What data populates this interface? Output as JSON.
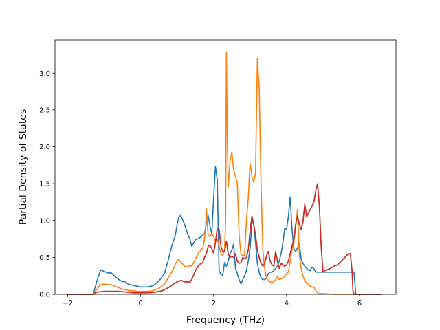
{
  "chart_data": {
    "type": "line",
    "title": "",
    "xlabel": "Frequency (THz)",
    "ylabel": "Partial Density of States",
    "xlim": [
      -2.35,
      7.0
    ],
    "ylim": [
      0.0,
      3.45
    ],
    "xticks": [
      -2,
      0,
      2,
      4,
      6
    ],
    "xtick_labels": [
      "−2",
      "0",
      "2",
      "4",
      "6"
    ],
    "yticks": [
      0.0,
      0.5,
      1.0,
      1.5,
      2.0,
      2.5,
      3.0
    ],
    "ytick_labels": [
      "0.0",
      "0.5",
      "1.0",
      "1.5",
      "2.0",
      "2.5",
      "3.0"
    ],
    "grid": false,
    "legend": "none",
    "series": [
      {
        "color": "#1f77b4",
        "x": [
          -2.0,
          -1.3,
          -1.2,
          -1.1,
          -1.0,
          -0.9,
          -0.8,
          -0.7,
          -0.6,
          -0.5,
          -0.45,
          -0.35,
          -0.2,
          -0.1,
          0.0,
          0.2,
          0.35,
          0.5,
          0.65,
          0.75,
          0.85,
          0.95,
          1.0,
          1.05,
          1.1,
          1.2,
          1.3,
          1.35,
          1.4,
          1.5,
          1.6,
          1.7,
          1.75,
          1.78,
          1.8,
          1.85,
          1.9,
          1.95,
          2.0,
          2.05,
          2.1,
          2.15,
          2.2,
          2.25,
          2.3,
          2.35,
          2.4,
          2.45,
          2.5,
          2.55,
          2.6,
          2.65,
          2.7,
          2.75,
          2.8,
          2.85,
          2.9,
          2.95,
          3.0,
          3.05,
          3.1,
          3.15,
          3.2,
          3.25,
          3.3,
          3.35,
          3.4,
          3.45,
          3.5,
          3.55,
          3.6,
          3.65,
          3.7,
          3.75,
          3.8,
          3.85,
          3.9,
          3.95,
          4.0,
          4.05,
          4.1,
          4.15,
          4.2,
          4.25,
          4.3,
          4.35,
          4.4,
          4.45,
          4.5,
          4.55,
          4.6,
          4.65,
          4.7,
          4.75,
          4.8,
          4.85,
          4.9,
          4.95,
          5.0,
          5.3,
          5.6,
          5.75,
          5.82,
          5.85,
          5.9,
          6.0,
          6.6
        ],
        "y": [
          0.0,
          0.0,
          0.18,
          0.33,
          0.31,
          0.29,
          0.29,
          0.24,
          0.2,
          0.17,
          0.18,
          0.14,
          0.12,
          0.11,
          0.1,
          0.1,
          0.12,
          0.18,
          0.28,
          0.45,
          0.65,
          0.8,
          0.95,
          1.05,
          1.07,
          0.95,
          0.8,
          0.75,
          0.65,
          0.74,
          0.76,
          0.8,
          0.82,
          0.9,
          0.97,
          1.07,
          0.92,
          0.82,
          1.3,
          1.73,
          1.55,
          0.32,
          0.27,
          0.26,
          0.43,
          0.38,
          0.45,
          0.55,
          0.6,
          0.68,
          0.35,
          0.28,
          0.2,
          0.14,
          0.2,
          0.25,
          0.32,
          0.45,
          0.62,
          0.98,
          0.95,
          0.7,
          0.42,
          0.3,
          0.22,
          0.2,
          0.2,
          0.22,
          0.28,
          0.3,
          0.3,
          0.32,
          0.35,
          0.38,
          0.45,
          0.55,
          0.7,
          0.89,
          0.88,
          1.05,
          1.32,
          0.88,
          0.62,
          0.58,
          0.63,
          0.69,
          0.48,
          0.42,
          0.38,
          0.35,
          0.33,
          0.32,
          0.37,
          0.35,
          0.3,
          0.3,
          0.3,
          0.3,
          0.3,
          0.3,
          0.3,
          0.3,
          0.3,
          0.3,
          0.0,
          0.0,
          0.0
        ]
      },
      {
        "color": "#ff7f0e",
        "x": [
          -2.0,
          -1.3,
          -1.2,
          -1.1,
          -1.0,
          -0.9,
          -0.8,
          -0.7,
          -0.6,
          -0.5,
          -0.4,
          -0.3,
          -0.2,
          -0.1,
          0.0,
          0.2,
          0.35,
          0.5,
          0.65,
          0.75,
          0.85,
          0.95,
          1.0,
          1.05,
          1.1,
          1.2,
          1.3,
          1.35,
          1.4,
          1.5,
          1.6,
          1.7,
          1.75,
          1.78,
          1.8,
          1.85,
          1.9,
          1.95,
          2.0,
          2.05,
          2.1,
          2.15,
          2.2,
          2.25,
          2.3,
          2.33,
          2.35,
          2.38,
          2.4,
          2.45,
          2.5,
          2.55,
          2.6,
          2.65,
          2.7,
          2.75,
          2.8,
          2.85,
          2.9,
          2.95,
          3.0,
          3.05,
          3.1,
          3.15,
          3.2,
          3.25,
          3.3,
          3.35,
          3.4,
          3.45,
          3.5,
          3.55,
          3.6,
          3.65,
          3.7,
          3.75,
          3.8,
          3.85,
          3.9,
          3.95,
          4.0,
          4.05,
          4.1,
          4.15,
          4.2,
          4.25,
          4.3,
          4.35,
          4.4,
          4.45,
          4.5,
          4.55,
          4.6,
          4.65,
          4.7,
          4.75,
          4.8,
          4.85,
          4.9,
          4.95,
          5.0,
          5.3,
          5.6,
          5.75,
          5.82,
          5.85,
          5.9,
          6.0,
          6.6
        ],
        "y": [
          0.0,
          0.0,
          0.07,
          0.13,
          0.14,
          0.13,
          0.13,
          0.11,
          0.09,
          0.07,
          0.06,
          0.05,
          0.05,
          0.04,
          0.04,
          0.04,
          0.05,
          0.08,
          0.14,
          0.22,
          0.3,
          0.4,
          0.46,
          0.47,
          0.44,
          0.38,
          0.37,
          0.4,
          0.38,
          0.48,
          0.57,
          0.62,
          0.75,
          0.9,
          1.16,
          0.8,
          0.78,
          0.82,
          0.78,
          0.72,
          0.75,
          0.65,
          0.55,
          0.52,
          0.6,
          1.0,
          3.28,
          2.0,
          1.45,
          1.8,
          1.93,
          1.68,
          1.6,
          1.5,
          0.8,
          0.55,
          0.52,
          0.53,
          1.0,
          1.3,
          1.78,
          1.6,
          1.52,
          1.65,
          3.2,
          2.8,
          1.5,
          0.6,
          0.35,
          0.22,
          0.18,
          0.17,
          0.16,
          0.17,
          0.2,
          0.24,
          0.2,
          0.21,
          0.22,
          0.25,
          0.28,
          0.3,
          0.45,
          0.6,
          0.7,
          0.9,
          1.15,
          0.55,
          0.35,
          0.25,
          0.18,
          0.15,
          0.13,
          0.11,
          0.1,
          0.1,
          0.05,
          0.02,
          0.01,
          0.01,
          0.01,
          0.0,
          0.0,
          0.0,
          0.0,
          0.0,
          0.0,
          0.0,
          0.0
        ]
      },
      {
        "color": "#2ca02c",
        "x": [
          -2.0,
          -1.3,
          -1.2,
          -1.0,
          -0.8,
          -0.6,
          -0.4,
          -0.2,
          0.0,
          0.2,
          0.4,
          0.6,
          0.8,
          0.9,
          1.0,
          1.05,
          1.1,
          1.2,
          1.3,
          1.35,
          1.4,
          1.5,
          1.6,
          1.7,
          1.75,
          1.8,
          1.85,
          1.9,
          1.95,
          2.0,
          2.05,
          2.1,
          2.15,
          2.2,
          2.25,
          2.3,
          2.35,
          2.4,
          2.45,
          2.5,
          2.55,
          2.6,
          2.65,
          2.7,
          2.75,
          2.8,
          2.85,
          2.9,
          2.95,
          3.0,
          3.05,
          3.1,
          3.15,
          3.2,
          3.25,
          3.3,
          3.35,
          3.4,
          3.45,
          3.5,
          3.55,
          3.6,
          3.65,
          3.7,
          3.75,
          3.8,
          3.85,
          3.9,
          3.95,
          4.0,
          4.05,
          4.1,
          4.15,
          4.2,
          4.25,
          4.3,
          4.35,
          4.4,
          4.45,
          4.5,
          4.55,
          4.6,
          4.65,
          4.7,
          4.75,
          4.8,
          4.85,
          4.9,
          4.95,
          5.0,
          5.05,
          5.1,
          5.2,
          5.3,
          5.4,
          5.5,
          5.6,
          5.7,
          5.75,
          5.8,
          5.82,
          5.85,
          5.9,
          6.0,
          6.6
        ],
        "y": [
          0.0,
          0.0,
          0.03,
          0.04,
          0.04,
          0.04,
          0.03,
          0.02,
          0.02,
          0.02,
          0.03,
          0.05,
          0.1,
          0.14,
          0.17,
          0.18,
          0.19,
          0.17,
          0.17,
          0.16,
          0.2,
          0.32,
          0.4,
          0.43,
          0.5,
          0.55,
          0.65,
          0.66,
          0.62,
          0.56,
          0.7,
          0.9,
          0.88,
          0.65,
          0.58,
          0.58,
          0.72,
          0.55,
          0.5,
          0.52,
          0.5,
          0.55,
          0.45,
          0.42,
          0.43,
          0.5,
          0.48,
          0.5,
          0.6,
          0.85,
          1.06,
          0.95,
          0.8,
          0.6,
          0.5,
          0.42,
          0.38,
          0.42,
          0.52,
          0.58,
          0.45,
          0.4,
          0.38,
          0.58,
          0.45,
          0.35,
          0.42,
          0.4,
          0.38,
          0.4,
          0.45,
          0.55,
          0.65,
          0.75,
          0.95,
          1.06,
          0.95,
          0.88,
          0.98,
          1.22,
          1.05,
          1.1,
          1.15,
          1.2,
          1.25,
          1.4,
          1.5,
          1.2,
          0.65,
          0.3,
          0.32,
          0.33,
          0.35,
          0.38,
          0.4,
          0.45,
          0.5,
          0.55,
          0.55,
          0.3,
          0.05,
          0.0,
          0.0,
          0.0,
          0.0
        ]
      },
      {
        "color": "#d62728",
        "x": [
          -2.0,
          -1.3,
          -1.2,
          -1.0,
          -0.8,
          -0.6,
          -0.4,
          -0.2,
          0.0,
          0.2,
          0.4,
          0.6,
          0.8,
          0.9,
          1.0,
          1.05,
          1.1,
          1.2,
          1.3,
          1.35,
          1.4,
          1.5,
          1.6,
          1.7,
          1.75,
          1.8,
          1.85,
          1.9,
          1.95,
          2.0,
          2.05,
          2.1,
          2.15,
          2.2,
          2.25,
          2.3,
          2.35,
          2.4,
          2.45,
          2.5,
          2.55,
          2.6,
          2.65,
          2.7,
          2.75,
          2.8,
          2.85,
          2.9,
          2.95,
          3.0,
          3.05,
          3.1,
          3.15,
          3.2,
          3.25,
          3.3,
          3.35,
          3.4,
          3.45,
          3.5,
          3.55,
          3.6,
          3.65,
          3.7,
          3.75,
          3.8,
          3.85,
          3.9,
          3.95,
          4.0,
          4.05,
          4.1,
          4.15,
          4.2,
          4.25,
          4.3,
          4.35,
          4.4,
          4.45,
          4.5,
          4.55,
          4.6,
          4.65,
          4.7,
          4.75,
          4.8,
          4.85,
          4.9,
          4.95,
          5.0,
          5.05,
          5.1,
          5.2,
          5.3,
          5.4,
          5.5,
          5.6,
          5.7,
          5.75,
          5.8,
          5.82,
          5.85,
          5.9,
          6.0,
          6.6
        ],
        "y": [
          0.0,
          0.0,
          0.03,
          0.04,
          0.04,
          0.04,
          0.03,
          0.02,
          0.02,
          0.02,
          0.03,
          0.05,
          0.1,
          0.14,
          0.17,
          0.18,
          0.19,
          0.17,
          0.17,
          0.16,
          0.2,
          0.32,
          0.4,
          0.43,
          0.5,
          0.55,
          0.65,
          0.66,
          0.62,
          0.56,
          0.7,
          0.9,
          0.88,
          0.65,
          0.58,
          0.58,
          0.72,
          0.55,
          0.5,
          0.52,
          0.5,
          0.55,
          0.45,
          0.42,
          0.43,
          0.5,
          0.48,
          0.5,
          0.6,
          0.85,
          1.06,
          0.95,
          0.8,
          0.6,
          0.5,
          0.42,
          0.38,
          0.42,
          0.52,
          0.58,
          0.45,
          0.4,
          0.38,
          0.58,
          0.45,
          0.35,
          0.42,
          0.4,
          0.38,
          0.4,
          0.45,
          0.55,
          0.65,
          0.75,
          0.95,
          1.06,
          0.95,
          0.88,
          0.98,
          1.22,
          1.05,
          1.1,
          1.15,
          1.2,
          1.25,
          1.4,
          1.5,
          1.2,
          0.65,
          0.3,
          0.32,
          0.33,
          0.35,
          0.38,
          0.4,
          0.45,
          0.5,
          0.55,
          0.55,
          0.3,
          0.05,
          0.0,
          0.0,
          0.0,
          0.0
        ]
      }
    ]
  }
}
